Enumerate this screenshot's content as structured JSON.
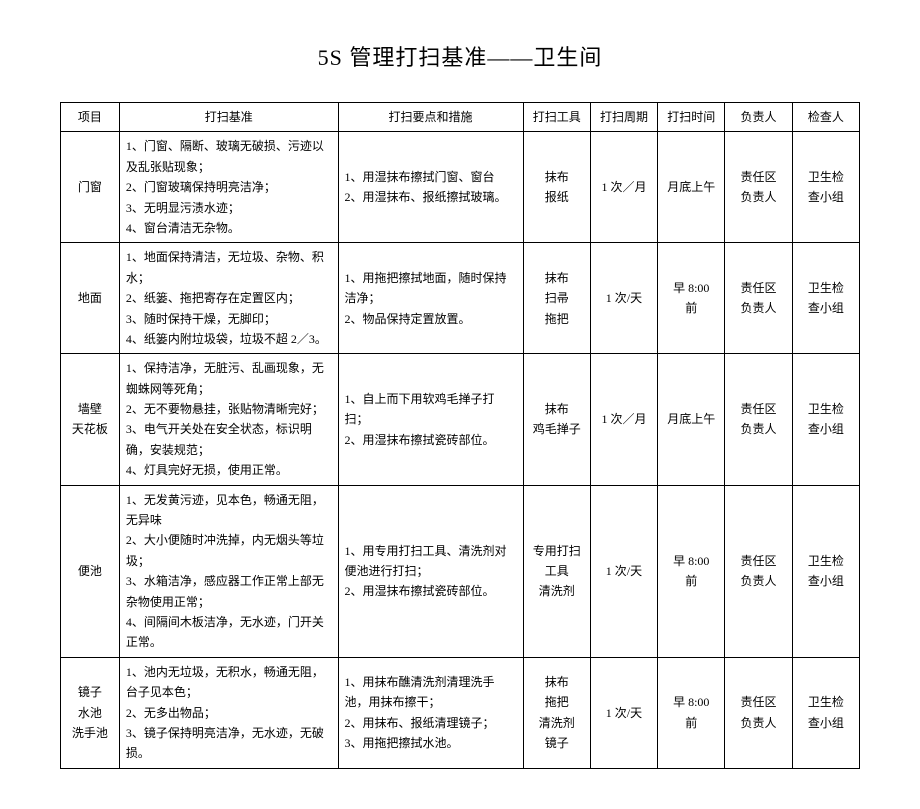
{
  "title": "5S 管理打扫基准——卫生间",
  "headers": {
    "item": "项目",
    "standard": "打扫基准",
    "measures": "打扫要点和措施",
    "tools": "打扫工具",
    "cycle": "打扫周期",
    "time": "打扫时间",
    "owner": "负责人",
    "checker": "检查人"
  },
  "rows": [
    {
      "item": "门窗",
      "standard": [
        "1、门窗、隔断、玻璃无破损、污迹以及乱张贴现象；",
        "2、门窗玻璃保持明亮洁净；",
        "3、无明显污渍水迹；",
        "4、窗台清洁无杂物。"
      ],
      "measures": [
        "1、用湿抹布擦拭门窗、窗台",
        "2、用湿抹布、报纸擦拭玻璃。"
      ],
      "tools": "抹布\n报纸",
      "cycle": "1 次／月",
      "time": "月底上午",
      "owner": "责任区\n负责人",
      "checker": "卫生检\n查小组"
    },
    {
      "item": "地面",
      "standard": [
        "1、地面保持清洁，无垃圾、杂物、积水；",
        "2、纸篓、拖把寄存在定置区内；",
        "3、随时保持干燥，无脚印；",
        "4、纸篓内附垃圾袋，垃圾不超 2／3。"
      ],
      "measures": [
        "1、用拖把擦拭地面，随时保持洁净；",
        "2、物品保持定置放置。"
      ],
      "tools": "抹布\n扫帚\n拖把",
      "cycle": "1 次/天",
      "time": "早 8:00\n前",
      "owner": "责任区\n负责人",
      "checker": "卫生检\n查小组"
    },
    {
      "item": "墙壁\n天花板",
      "standard": [
        "1、保持洁净，无脏污、乱画现象，无蜘蛛网等死角；",
        "2、无不要物悬挂，张贴物清晰完好；",
        "3、电气开关处在安全状态，标识明确，安装规范；",
        "4、灯具完好无损，使用正常。"
      ],
      "measures": [
        "1、自上而下用软鸡毛掸子打扫；",
        "2、用湿抹布擦拭瓷砖部位。"
      ],
      "tools": "抹布\n鸡毛掸子",
      "cycle": "1 次／月",
      "time": "月底上午",
      "owner": "责任区\n负责人",
      "checker": "卫生检\n查小组"
    },
    {
      "item": "便池",
      "standard": [
        "1、无发黄污迹，见本色，畅通无阻，无异味",
        "2、大小便随时冲洗掉，内无烟头等垃圾；",
        "3、水箱洁净，感应器工作正常上部无杂物使用正常；",
        "4、间隔间木板洁净，无水迹，门开关正常。"
      ],
      "measures": [
        "1、用专用打扫工具、清洗剂对便池进行打扫；",
        "2、用湿抹布擦拭瓷砖部位。"
      ],
      "tools": "专用打扫\n工具\n清洗剂",
      "cycle": "1 次/天",
      "time": "早 8:00\n前",
      "owner": "责任区\n负责人",
      "checker": "卫生检\n查小组"
    },
    {
      "item": "镜子\n水池\n洗手池",
      "standard": [
        "1、池内无垃圾，无积水，畅通无阻，台子见本色；",
        "2、无多出物品；",
        "3、镜子保持明亮洁净，无水迹，无破损。"
      ],
      "measures": [
        "1、用抹布醮清洗剂清理洗手池，用抹布擦干；",
        "2、用抹布、报纸清理镜子；",
        "3、用拖把擦拭水池。"
      ],
      "tools": "抹布\n拖把\n清洗剂\n镜子",
      "cycle": "1 次/天",
      "time": "早 8:00\n前",
      "owner": "责任区\n负责人",
      "checker": "卫生检\n查小组"
    }
  ],
  "styling": {
    "background_color": "#ffffff",
    "text_color": "#000000",
    "border_color": "#000000",
    "title_fontsize": 22,
    "body_fontsize": 12,
    "font_family": "SimSun",
    "column_widths_pct": [
      7,
      26,
      22,
      8,
      8,
      8,
      8,
      8
    ]
  }
}
